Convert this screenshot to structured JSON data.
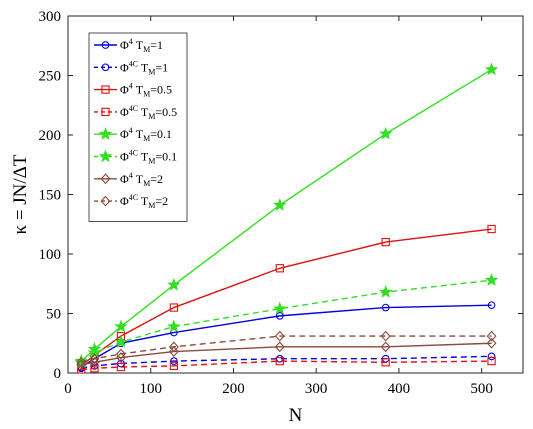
{
  "chart_data": {
    "type": "line",
    "xlabel": "N",
    "ylabel": "κ = JN/ΔT",
    "xlim": [
      0,
      550
    ],
    "ylim": [
      0,
      300
    ],
    "xticks": [
      0,
      100,
      200,
      300,
      400,
      500
    ],
    "yticks": [
      0,
      50,
      100,
      150,
      200,
      250,
      300
    ],
    "grid": false,
    "legend_position": "top-left",
    "x": [
      16,
      32,
      64,
      128,
      256,
      384,
      512
    ],
    "series": [
      {
        "name": "Φ⁴ T_M=1",
        "base": "Φ",
        "sup": "4",
        "sub": "M",
        "pre": "T",
        "post": "=1",
        "color": "#0000e0",
        "dash": "solid",
        "marker": "circle",
        "values": [
          5,
          12,
          25,
          34,
          48,
          55,
          57
        ]
      },
      {
        "name": "Φ⁴ᶜ T_M=1",
        "base": "Φ",
        "sup": "4C",
        "sub": "M",
        "pre": "T",
        "post": "=1",
        "color": "#0000e0",
        "dash": "dashed",
        "marker": "circle",
        "values": [
          4,
          6,
          8,
          10,
          12,
          12,
          14
        ]
      },
      {
        "name": "Φ⁴ T_M=0.5",
        "base": "Φ",
        "sup": "4",
        "sub": "M",
        "pre": "T",
        "post": "=0.5",
        "color": "#e01010",
        "dash": "solid",
        "marker": "square",
        "values": [
          6,
          15,
          31,
          55,
          88,
          110,
          121
        ]
      },
      {
        "name": "Φ⁴ᶜ T_M=0.5",
        "base": "Φ",
        "sup": "4C",
        "sub": "M",
        "pre": "T",
        "post": "=0.5",
        "color": "#e01010",
        "dash": "dashed",
        "marker": "square",
        "values": [
          3,
          4,
          5,
          6,
          10,
          9,
          10
        ]
      },
      {
        "name": "Φ⁴ T_M=0.1",
        "base": "Φ",
        "sup": "4",
        "sub": "M",
        "pre": "T",
        "post": "=0.1",
        "color": "#33dd22",
        "dash": "solid",
        "marker": "star",
        "values": [
          10,
          20,
          39,
          74,
          141,
          201,
          255
        ]
      },
      {
        "name": "Φ⁴ᶜ T_M=0.1",
        "base": "Φ",
        "sup": "4C",
        "sub": "M",
        "pre": "T",
        "post": "=0.1",
        "color": "#33dd22",
        "dash": "dashed",
        "marker": "star",
        "values": [
          9,
          17,
          26,
          39,
          54,
          68,
          78
        ]
      },
      {
        "name": "Φ⁴ T_M=2",
        "base": "Φ",
        "sup": "4",
        "sub": "M",
        "pre": "T",
        "post": "=2",
        "color": "#8b4a3c",
        "dash": "solid",
        "marker": "diamond",
        "values": [
          7,
          9,
          13,
          18,
          22,
          22,
          25
        ]
      },
      {
        "name": "Φ⁴ᶜ T_M=2",
        "base": "Φ",
        "sup": "4C",
        "sub": "M",
        "pre": "T",
        "post": "=2",
        "color": "#8b4a3c",
        "dash": "dashed",
        "marker": "diamond",
        "values": [
          9,
          12,
          16,
          22,
          31,
          31,
          31
        ]
      }
    ]
  }
}
